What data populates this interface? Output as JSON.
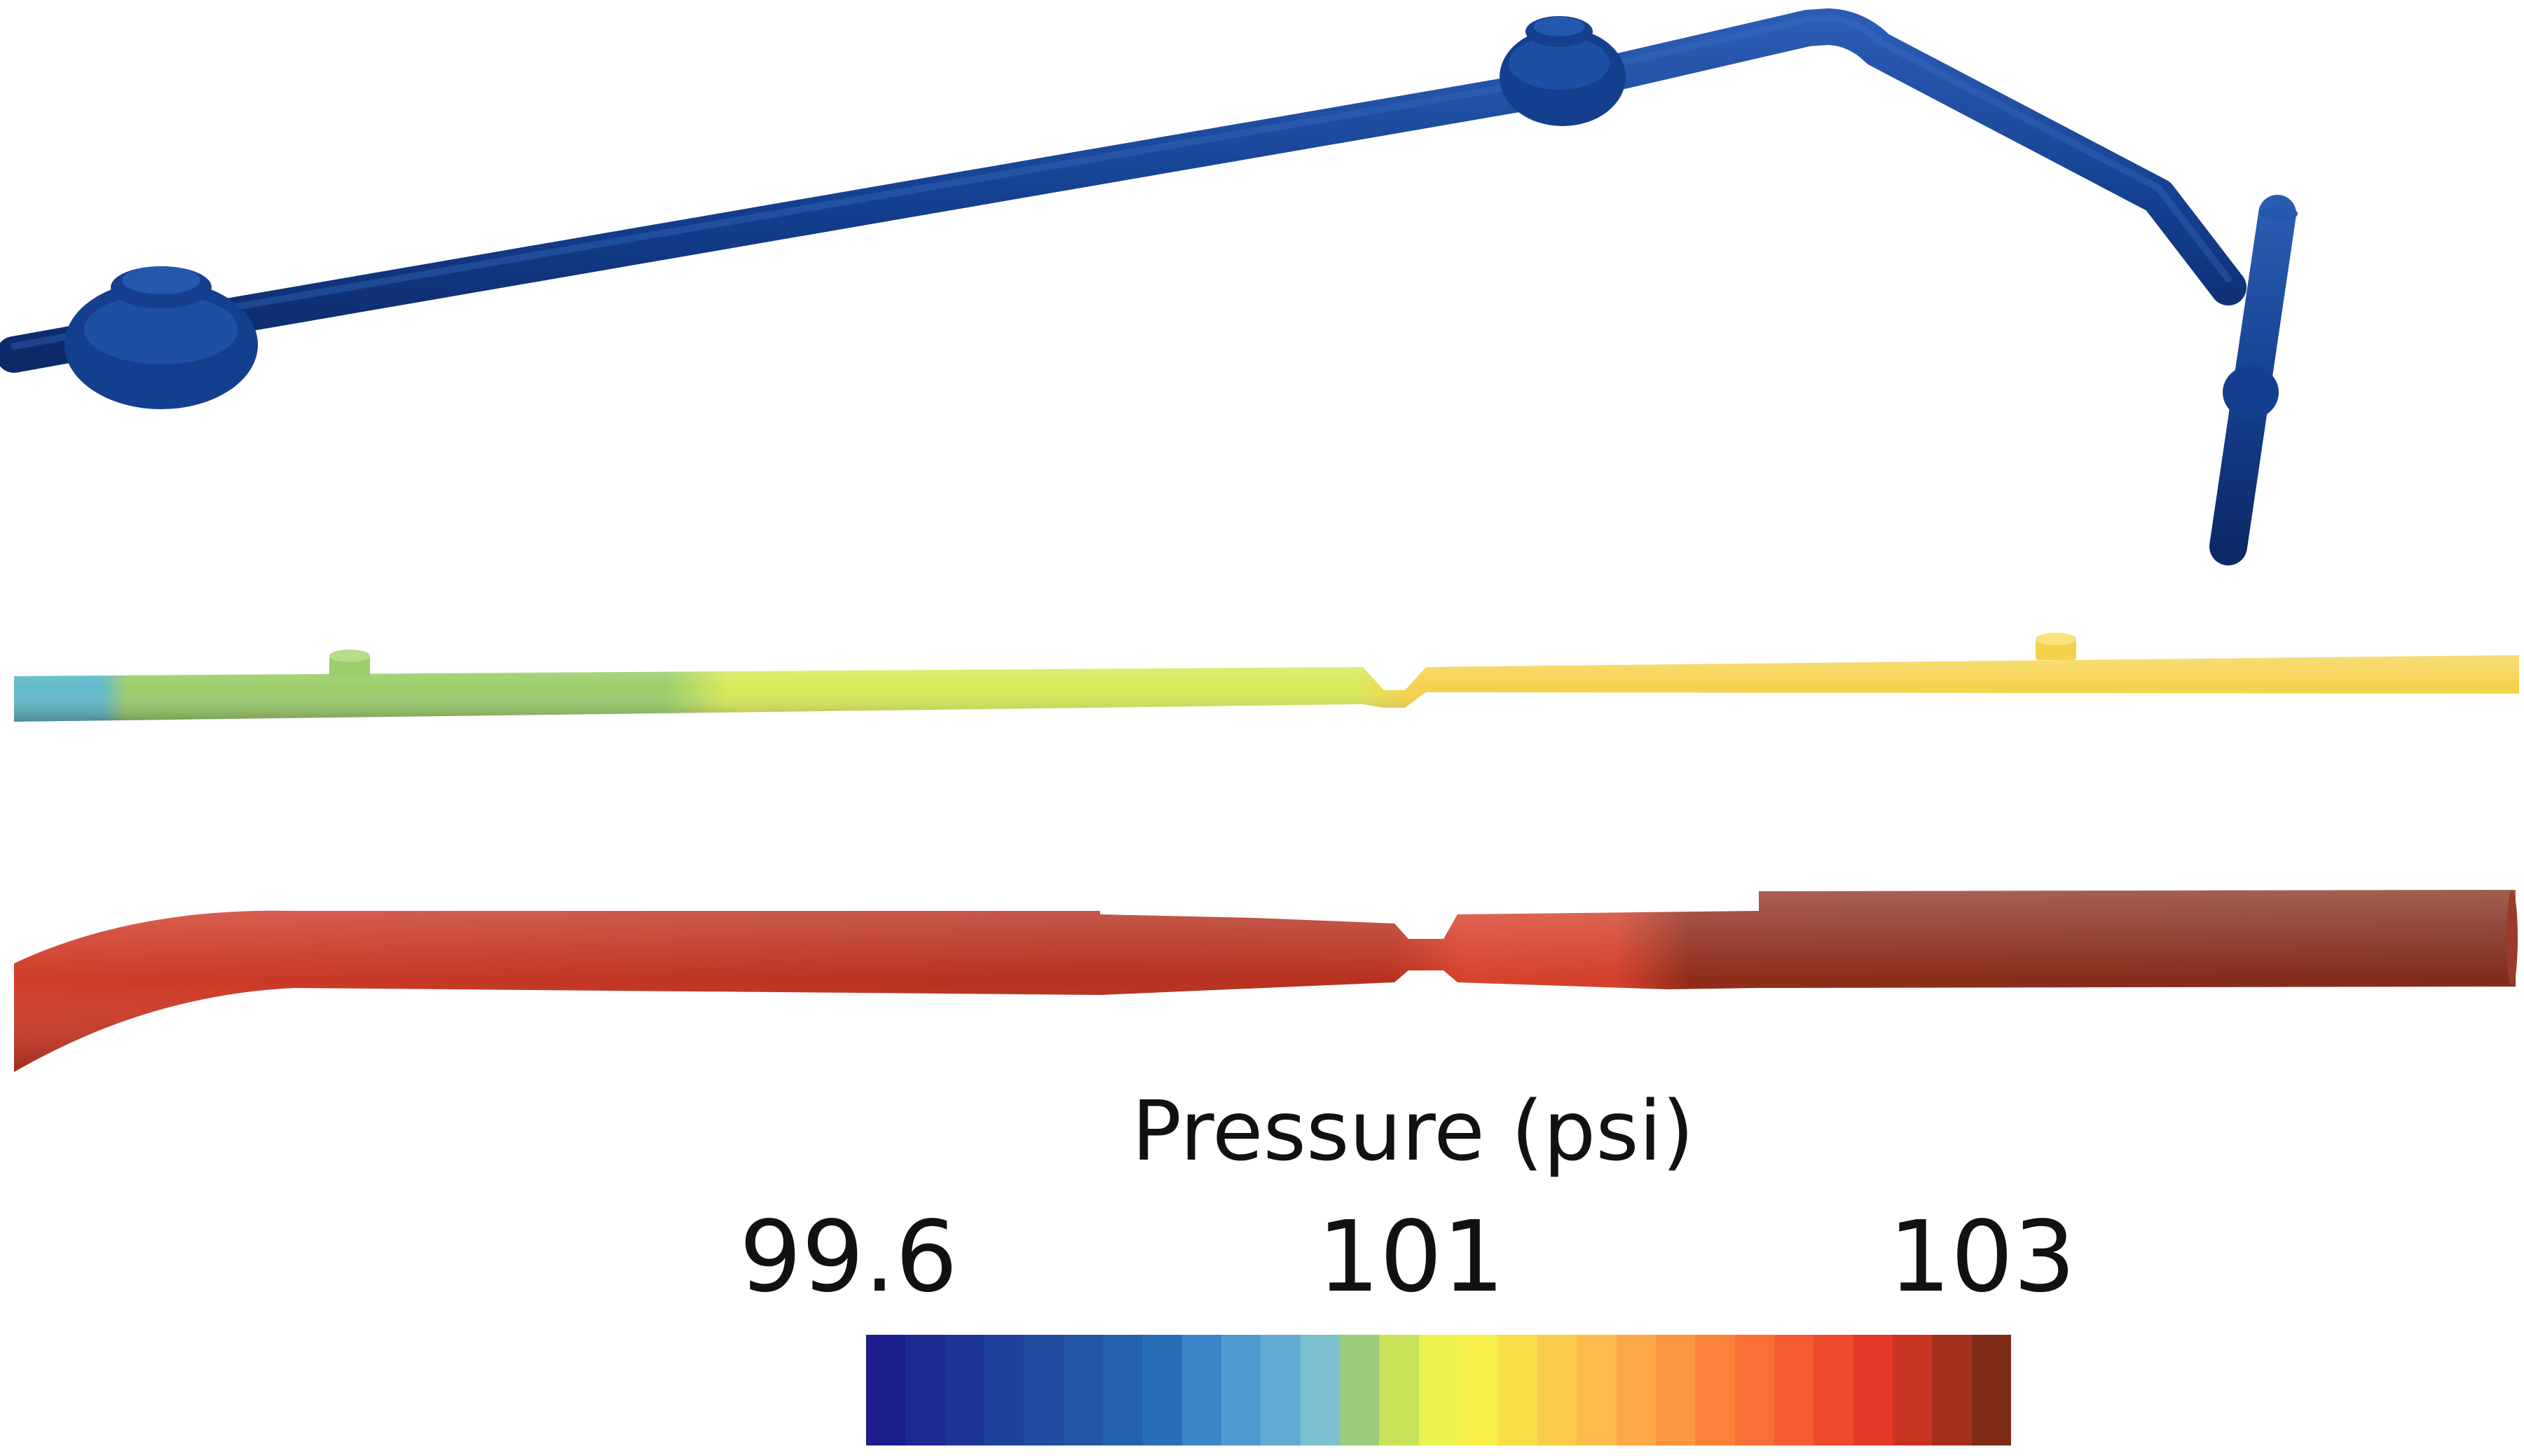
{
  "legend": {
    "title": "Pressure (psi)",
    "tick_min": "99.6",
    "tick_mid": "101",
    "tick_max": "103",
    "colorbar_colors": [
      "#1b1e8c",
      "#1c2a91",
      "#1d3596",
      "#1f419b",
      "#214ca0",
      "#2357a5",
      "#2562ad",
      "#286fb8",
      "#3b86c7",
      "#4f9acf",
      "#62abd2",
      "#7cc0cf",
      "#9ccd7c",
      "#c8e35a",
      "#eaf34d",
      "#f7f04a",
      "#f9de4a",
      "#fbcc4b",
      "#fcbb4a",
      "#fda846",
      "#fd9641",
      "#fc823b",
      "#f96f36",
      "#f55d31",
      "#ef4a2c",
      "#e43a27",
      "#c93322",
      "#a3301d",
      "#7f2b18"
    ]
  },
  "pipes": {
    "top_color": "#143f8f",
    "middle_colors": [
      "#62b9c9",
      "#9cce6c",
      "#d8e95a",
      "#f5d24c"
    ],
    "bottom_colors": [
      "#c63a26",
      "#b5301f",
      "#d9412b",
      "#7f2b18"
    ]
  }
}
